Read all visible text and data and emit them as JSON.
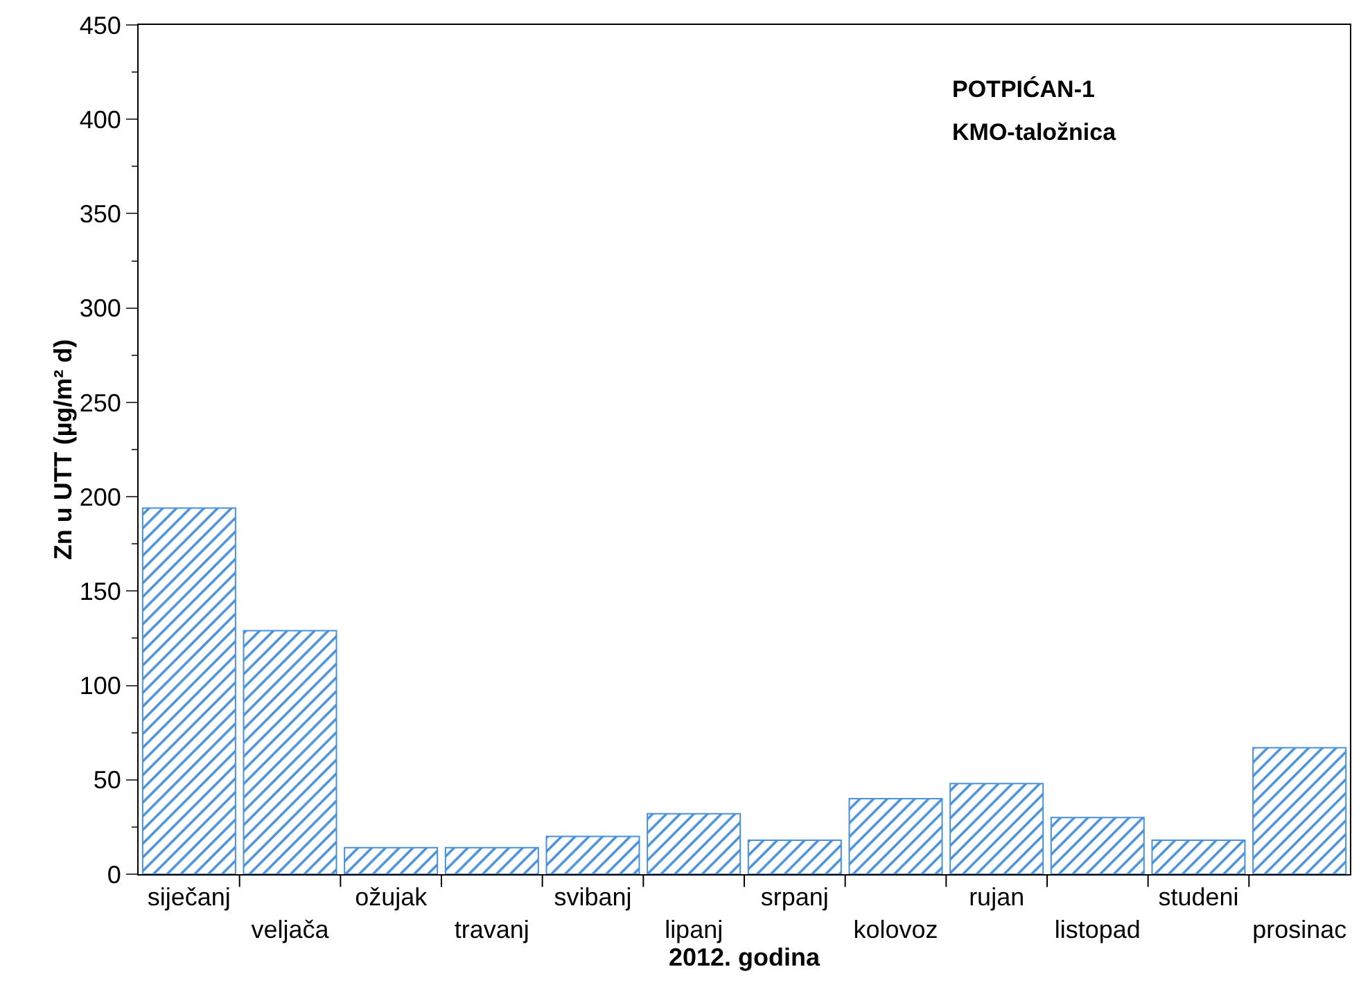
{
  "chart_data": {
    "type": "bar",
    "xlabel": "2012. godina",
    "ylabel": "Zn u UTT (µg/m² d)",
    "annotations": [
      "POTPIĆAN-1",
      "KMO-taložnica"
    ],
    "categories": [
      "siječanj",
      "veljača",
      "ožujak",
      "travanj",
      "svibanj",
      "lipanj",
      "srpanj",
      "kolovoz",
      "rujan",
      "listopad",
      "studeni",
      "prosinac"
    ],
    "values": [
      194,
      129,
      14,
      14,
      20,
      32,
      18,
      40,
      48,
      30,
      18,
      67
    ],
    "color": "#4a90d9",
    "ylim": [
      0,
      450
    ],
    "yticks": [
      0,
      50,
      100,
      150,
      200,
      250,
      300,
      350,
      400,
      450
    ],
    "grid": false
  }
}
